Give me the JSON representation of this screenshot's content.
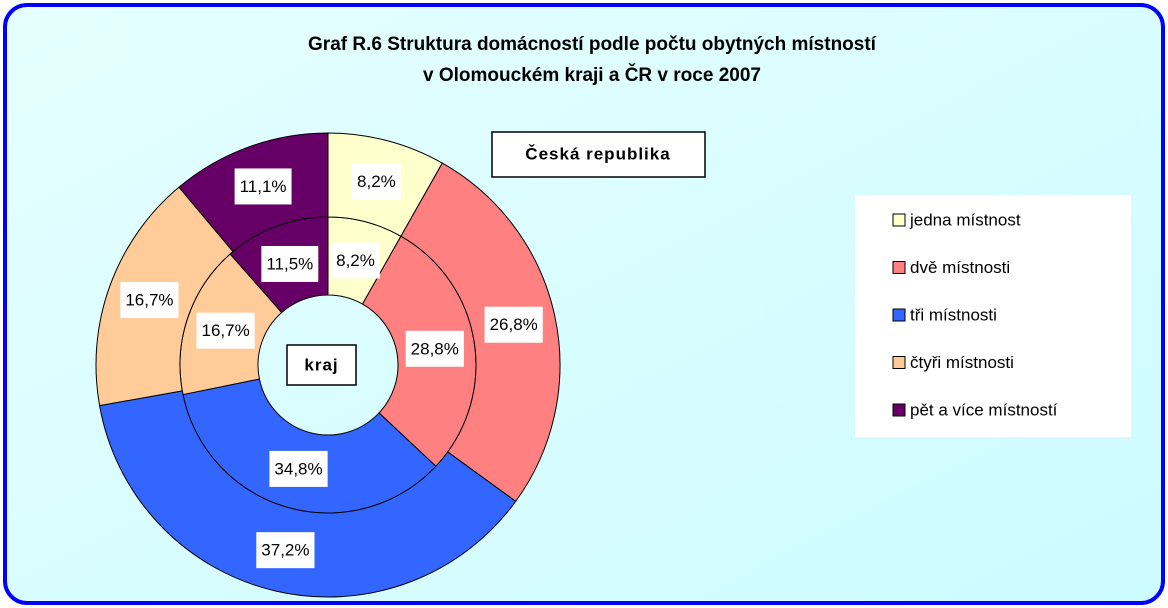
{
  "chart_data": {
    "type": "donut",
    "title": [
      "Graf R.6 Struktura domácností podle počtu obytných místností",
      "v Olomouckém kraji a ČR v roce 2007"
    ],
    "categories": [
      "jedna místnost",
      "dvě místnosti",
      "tři místnosti",
      "čtyři místnosti",
      "pět a více místností"
    ],
    "colors": [
      "#ffffcc",
      "#ff8080",
      "#3366ff",
      "#ffcc99",
      "#660066"
    ],
    "series": [
      {
        "name": "kraj",
        "values": [
          8.2,
          28.8,
          34.8,
          16.7,
          11.5
        ],
        "value_labels": [
          "8,2%",
          "28,8%",
          "34,8%",
          "16,7%",
          "11,5%"
        ]
      },
      {
        "name": "Česká republika",
        "values": [
          8.2,
          26.8,
          37.2,
          16.7,
          11.1
        ],
        "value_labels": [
          "8,2%",
          "26,8%",
          "37,2%",
          "16,7%",
          "11,1%"
        ]
      }
    ]
  }
}
